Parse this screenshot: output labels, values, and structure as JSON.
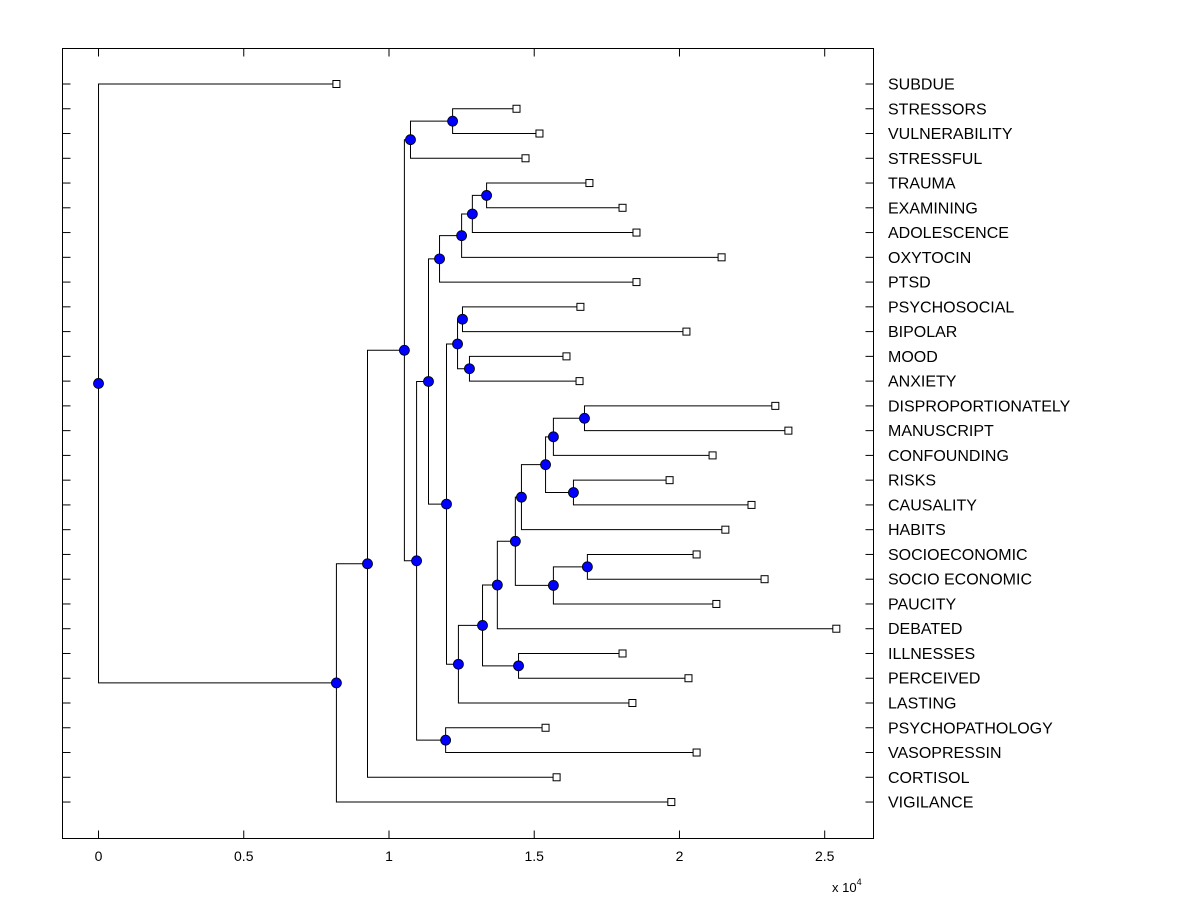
{
  "chart_data": {
    "type": "dendrogram",
    "orientation": "horizontal",
    "xlim": [
      -0.124,
      2.668
    ],
    "xticks": [
      "0",
      "0.5",
      "1",
      "1.5",
      "2",
      "2.5"
    ],
    "xtick_values": [
      0,
      0.5,
      1,
      1.5,
      2,
      2.5
    ],
    "x_multiplier": "x 10",
    "x_multiplier_exp": "4",
    "leaf_labels_side": "right",
    "node_color": "#0000ff",
    "leaf_marker": "square",
    "grid": false,
    "tree": {
      "h": 0,
      "children": [
        {
          "label": "SUBDUE",
          "h": 0.819
        },
        {
          "h": 0.819,
          "children": [
            {
              "h": 0.926,
              "children": [
                {
                  "h": 1.053,
                  "children": [
                    {
                      "h": 1.074,
                      "children": [
                        {
                          "h": 1.219,
                          "children": [
                            {
                              "label": "STRESSORS",
                              "h": 1.439
                            },
                            {
                              "label": "VULNERABILITY",
                              "h": 1.518
                            }
                          ]
                        },
                        {
                          "label": "STRESSFUL",
                          "h": 1.47
                        }
                      ]
                    },
                    {
                      "h": 1.095,
                      "children": [
                        {
                          "h": 1.136,
                          "children": [
                            {
                              "h": 1.174,
                              "children": [
                                {
                                  "h": 1.25,
                                  "children": [
                                    {
                                      "h": 1.287,
                                      "children": [
                                        {
                                          "h": 1.336,
                                          "children": [
                                            {
                                              "label": "TRAUMA",
                                              "h": 1.69
                                            },
                                            {
                                              "label": "EXAMINING",
                                              "h": 1.804
                                            }
                                          ]
                                        },
                                        {
                                          "label": "ADOLESCENCE",
                                          "h": 1.852
                                        }
                                      ]
                                    },
                                    {
                                      "label": "OXYTOCIN",
                                      "h": 2.145
                                    }
                                  ]
                                },
                                {
                                  "label": "PTSD",
                                  "h": 1.852
                                }
                              ]
                            },
                            {
                              "h": 1.198,
                              "children": [
                                {
                                  "h": 1.236,
                                  "children": [
                                    {
                                      "h": 1.253,
                                      "children": [
                                        {
                                          "label": "PSYCHOSOCIAL",
                                          "h": 1.659
                                        },
                                        {
                                          "label": "BIPOLAR",
                                          "h": 2.024
                                        }
                                      ]
                                    },
                                    {
                                      "h": 1.277,
                                      "children": [
                                        {
                                          "label": "MOOD",
                                          "h": 1.611
                                        },
                                        {
                                          "label": "ANXIETY",
                                          "h": 1.656
                                        }
                                      ]
                                    }
                                  ]
                                },
                                {
                                  "h": 1.239,
                                  "children": [
                                    {
                                      "h": 1.322,
                                      "children": [
                                        {
                                          "h": 1.373,
                                          "children": [
                                            {
                                              "h": 1.435,
                                              "children": [
                                                {
                                                  "h": 1.456,
                                                  "children": [
                                                    {
                                                      "h": 1.539,
                                                      "children": [
                                                        {
                                                          "h": 1.566,
                                                          "children": [
                                                            {
                                                              "h": 1.673,
                                                              "children": [
                                                                {
                                                                  "label": "DISPROPORTIONATELY",
                                                                  "h": 2.33
                                                                },
                                                                {
                                                                  "label": "MANUSCRIPT",
                                                                  "h": 2.375
                                                                }
                                                              ]
                                                            },
                                                            {
                                                              "label": "CONFOUNDING",
                                                              "h": 2.114
                                                            }
                                                          ]
                                                        },
                                                        {
                                                          "h": 1.635,
                                                          "children": [
                                                            {
                                                              "label": "RISKS",
                                                              "h": 1.966
                                                            },
                                                            {
                                                              "label": "CAUSALITY",
                                                              "h": 2.248
                                                            }
                                                          ]
                                                        }
                                                      ]
                                                    },
                                                    {
                                                      "label": "HABITS",
                                                      "h": 2.158
                                                    }
                                                  ]
                                                },
                                                {
                                                  "h": 1.566,
                                                  "children": [
                                                    {
                                                      "h": 1.683,
                                                      "children": [
                                                        {
                                                          "label": "SOCIOECONOMIC",
                                                          "h": 2.059
                                                        },
                                                        {
                                                          "label": "SOCIO ECONOMIC",
                                                          "h": 2.293
                                                        }
                                                      ]
                                                    },
                                                    {
                                                      "label": "PAUCITY",
                                                      "h": 2.127
                                                    }
                                                  ]
                                                }
                                              ]
                                            },
                                            {
                                              "label": "DEBATED",
                                              "h": 2.54
                                            }
                                          ]
                                        },
                                        {
                                          "h": 1.446,
                                          "children": [
                                            {
                                              "label": "ILLNESSES",
                                              "h": 1.804
                                            },
                                            {
                                              "label": "PERCEIVED",
                                              "h": 2.031
                                            }
                                          ]
                                        }
                                      ]
                                    },
                                    {
                                      "label": "LASTING",
                                      "h": 1.838
                                    }
                                  ]
                                }
                              ]
                            }
                          ]
                        },
                        {
                          "h": 1.195,
                          "children": [
                            {
                              "label": "PSYCHOPATHOLOGY",
                              "h": 1.539
                            },
                            {
                              "label": "VASOPRESSIN",
                              "h": 2.059
                            }
                          ]
                        }
                      ]
                    }
                  ]
                },
                {
                  "label": "CORTISOL",
                  "h": 1.577
                }
              ]
            },
            {
              "label": "VIGILANCE",
              "h": 1.972
            }
          ]
        }
      ]
    }
  }
}
